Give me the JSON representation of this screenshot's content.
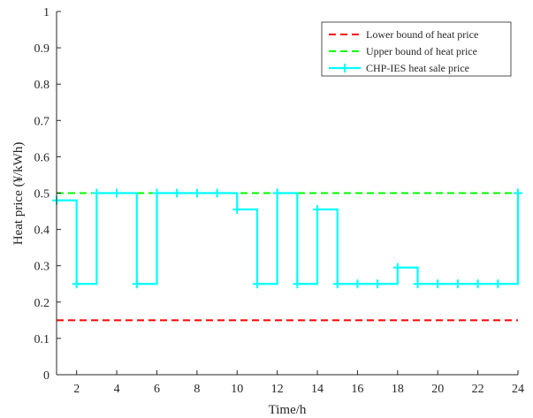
{
  "chart_data": {
    "type": "line",
    "title": "",
    "xlabel": "Time/h",
    "ylabel": "Heat price (¥/kWh)",
    "xlim": [
      1,
      24
    ],
    "ylim": [
      0,
      1
    ],
    "x_ticks": [
      2,
      4,
      6,
      8,
      10,
      12,
      14,
      16,
      18,
      20,
      22,
      24
    ],
    "y_ticks": [
      0,
      0.1,
      0.2,
      0.3,
      0.4,
      0.5,
      0.6,
      0.7,
      0.8,
      0.9,
      1
    ],
    "grid": false,
    "legend_position": "top-right",
    "series": [
      {
        "name": "Lower bound of heat price",
        "style": "dashed",
        "color": "#ff0000",
        "x": [
          1,
          24
        ],
        "y": [
          0.15,
          0.15
        ]
      },
      {
        "name": "Upper bound of heat price",
        "style": "dashed",
        "color": "#00ff00",
        "x": [
          1,
          24
        ],
        "y": [
          0.5,
          0.5
        ]
      },
      {
        "name": "CHP-IES heat sale price",
        "style": "stairs",
        "marker": "plus",
        "color": "#00ffff",
        "x": [
          1,
          2,
          3,
          4,
          5,
          6,
          7,
          8,
          9,
          10,
          11,
          12,
          13,
          14,
          15,
          16,
          17,
          18,
          19,
          20,
          21,
          22,
          23,
          24
        ],
        "y": [
          0.48,
          0.25,
          0.5,
          0.5,
          0.25,
          0.5,
          0.5,
          0.5,
          0.5,
          0.455,
          0.25,
          0.5,
          0.25,
          0.455,
          0.25,
          0.25,
          0.25,
          0.295,
          0.25,
          0.25,
          0.25,
          0.25,
          0.25,
          0.5
        ]
      }
    ]
  }
}
